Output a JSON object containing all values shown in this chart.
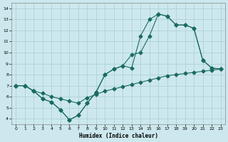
{
  "xlabel": "Humidex (Indice chaleur)",
  "xlim": [
    -0.5,
    23.5
  ],
  "ylim": [
    3.5,
    14.5
  ],
  "xticks": [
    0,
    1,
    2,
    3,
    4,
    5,
    6,
    7,
    8,
    9,
    10,
    11,
    12,
    13,
    14,
    15,
    16,
    17,
    18,
    19,
    20,
    21,
    22,
    23
  ],
  "yticks": [
    4,
    5,
    6,
    7,
    8,
    9,
    10,
    11,
    12,
    13,
    14
  ],
  "bg_color": "#cce8ee",
  "line_color": "#1a6b5e",
  "grid_color": "#aaccd4",
  "series1_x": [
    0,
    1,
    2,
    3,
    4,
    5,
    6,
    7,
    8,
    9,
    10,
    11,
    12,
    13,
    14,
    15,
    16,
    17,
    18,
    19,
    20,
    21,
    22,
    23
  ],
  "series1_y": [
    7.0,
    7.0,
    6.5,
    5.8,
    5.5,
    4.8,
    3.9,
    4.3,
    5.4,
    6.4,
    8.0,
    8.5,
    8.8,
    8.6,
    11.5,
    13.0,
    13.5,
    13.3,
    12.5,
    12.5,
    12.2,
    9.3,
    8.6,
    8.5
  ],
  "series2_x": [
    0,
    1,
    2,
    3,
    4,
    5,
    6,
    7,
    8,
    9,
    10,
    11,
    12,
    13,
    14,
    15,
    16,
    17,
    18,
    19,
    20,
    21,
    22,
    23
  ],
  "series2_y": [
    7.0,
    7.0,
    6.5,
    5.8,
    5.5,
    4.8,
    3.9,
    4.3,
    5.4,
    6.4,
    8.0,
    8.5,
    8.8,
    9.8,
    10.0,
    11.5,
    13.5,
    13.3,
    12.5,
    12.5,
    12.2,
    9.3,
    8.6,
    8.5
  ],
  "series3_x": [
    0,
    1,
    2,
    3,
    4,
    5,
    6,
    7,
    8,
    9,
    10,
    11,
    12,
    13,
    14,
    15,
    16,
    17,
    18,
    19,
    20,
    21,
    22,
    23
  ],
  "series3_y": [
    7.0,
    7.0,
    6.5,
    6.3,
    6.0,
    5.8,
    5.6,
    5.4,
    5.9,
    6.2,
    6.5,
    6.7,
    6.9,
    7.1,
    7.3,
    7.5,
    7.7,
    7.9,
    8.0,
    8.1,
    8.2,
    8.3,
    8.4,
    8.5
  ]
}
